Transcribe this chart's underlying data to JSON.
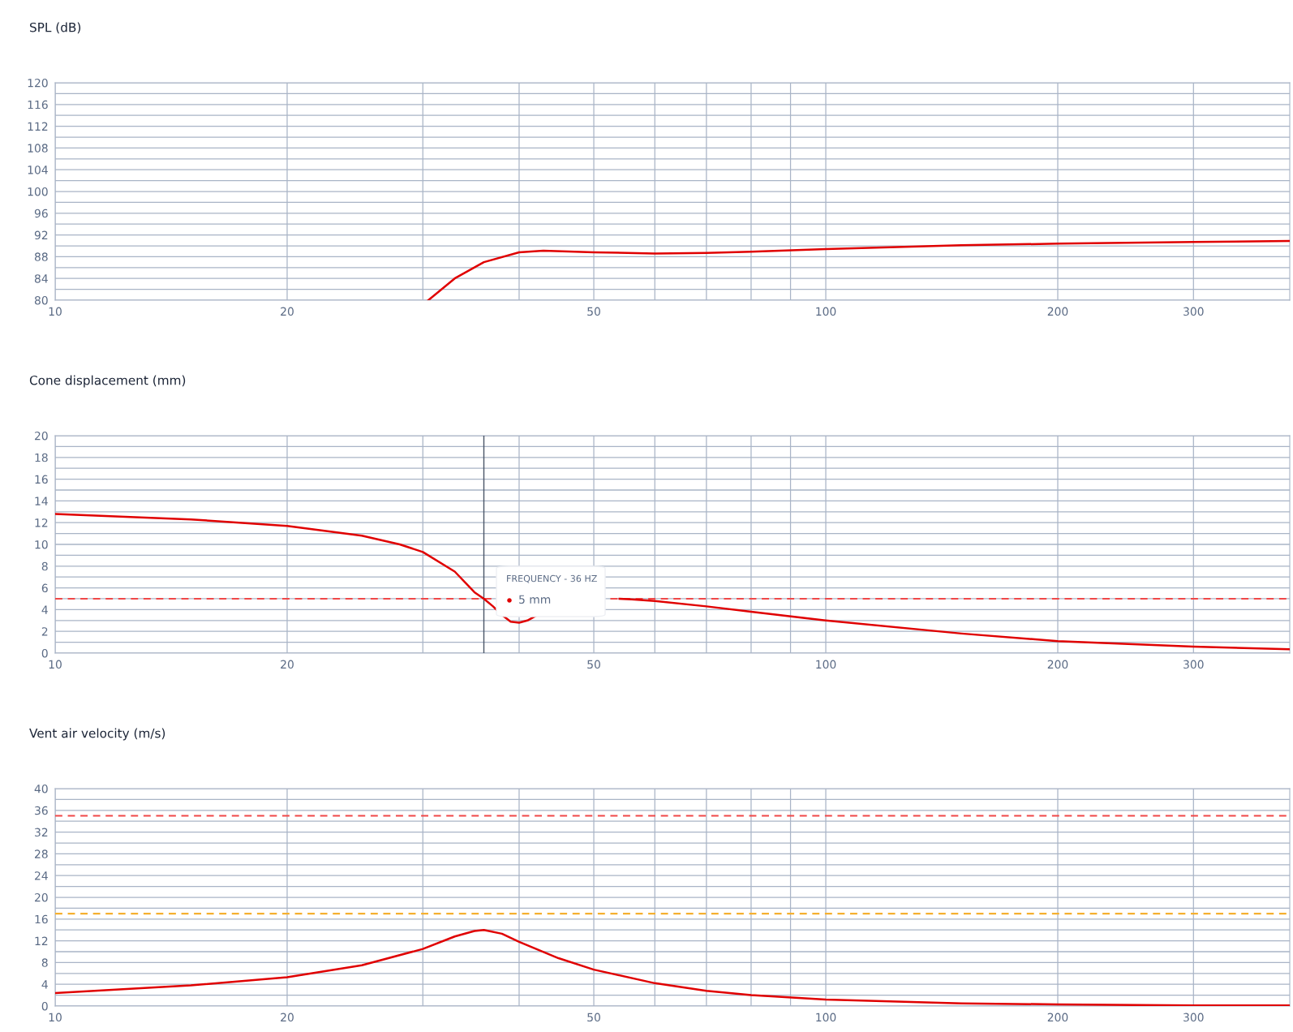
{
  "chart_data": [
    {
      "type": "line",
      "title": "SPL (dB)",
      "log": "x",
      "grid": true,
      "legend": false,
      "marker": "none",
      "line_style": "solid",
      "xlim": [
        10,
        400
      ],
      "xticks": [
        10,
        20,
        {
          "value": 30,
          "label": null
        },
        {
          "value": 40,
          "label": null
        },
        50,
        {
          "value": 60,
          "label": null
        },
        {
          "value": 70,
          "label": null
        },
        {
          "value": 80,
          "label": null
        },
        {
          "value": 90,
          "label": null
        },
        100,
        200,
        300
      ],
      "ylim": [
        80,
        120
      ],
      "yticks": [
        80,
        {
          "value": 82,
          "label": null
        },
        84,
        {
          "value": 86,
          "label": null
        },
        88,
        {
          "value": 90,
          "label": null
        },
        92,
        {
          "value": 94,
          "label": null
        },
        96,
        {
          "value": 98,
          "label": null
        },
        100,
        {
          "value": 102,
          "label": null
        },
        104,
        {
          "value": 106,
          "label": null
        },
        108,
        {
          "value": 110,
          "label": null
        },
        112,
        {
          "value": 114,
          "label": null
        },
        116,
        {
          "value": 118,
          "label": null
        },
        120
      ],
      "series": [
        {
          "color": "#e00000",
          "x": [
            30.5,
            33,
            36,
            40,
            43,
            50,
            60,
            70,
            80,
            100,
            150,
            200,
            300,
            400
          ],
          "values": [
            80,
            84,
            87,
            88.8,
            89.1,
            88.8,
            88.6,
            88.7,
            88.9,
            89.4,
            90.1,
            90.4,
            90.7,
            90.9
          ]
        }
      ]
    },
    {
      "type": "line",
      "title": "Cone displacement (mm)",
      "log": "x",
      "grid": true,
      "legend": false,
      "marker": "none",
      "line_style": "solid",
      "xlim": [
        10,
        400
      ],
      "xticks": [
        10,
        20,
        {
          "value": 30,
          "label": null
        },
        {
          "value": 40,
          "label": null
        },
        50,
        {
          "value": 60,
          "label": null
        },
        {
          "value": 70,
          "label": null
        },
        {
          "value": 80,
          "label": null
        },
        {
          "value": 90,
          "label": null
        },
        100,
        200,
        300
      ],
      "ylim": [
        0,
        20
      ],
      "yticks": [
        0,
        {
          "value": 1,
          "label": null
        },
        2,
        {
          "value": 3,
          "label": null
        },
        4,
        {
          "value": 5,
          "label": null
        },
        6,
        {
          "value": 7,
          "label": null
        },
        8,
        {
          "value": 9,
          "label": null
        },
        10,
        {
          "value": 11,
          "label": null
        },
        12,
        {
          "value": 13,
          "label": null
        },
        14,
        {
          "value": 15,
          "label": null
        },
        16,
        {
          "value": 17,
          "label": null
        },
        18,
        {
          "value": 19,
          "label": null
        },
        20
      ],
      "series": [
        {
          "color": "#e00000",
          "x": [
            10,
            15,
            20,
            25,
            28,
            30,
            33,
            35,
            36,
            37,
            38,
            39,
            40,
            41,
            42,
            46,
            54,
            56,
            60,
            70,
            80,
            100,
            150,
            200,
            300,
            400
          ],
          "values": [
            12.8,
            12.3,
            11.7,
            10.8,
            10,
            9.3,
            7.5,
            5.6,
            5,
            4.3,
            3.5,
            2.9,
            2.8,
            3.0,
            3.4,
            null,
            5.0,
            4.95,
            4.8,
            4.3,
            3.8,
            3.0,
            1.8,
            1.1,
            0.6,
            0.35
          ]
        }
      ],
      "ref_lines": [
        {
          "axis": "y",
          "value": 5,
          "color": "#f04848",
          "line_style": "dashed"
        },
        {
          "axis": "x",
          "value": 36,
          "color": "#4a5566",
          "line_style": "solid"
        }
      ],
      "annotations": [
        "FREQUENCY - 36 HZ",
        "5 mm"
      ]
    },
    {
      "type": "line",
      "title": "Vent air velocity (m/s)",
      "log": "x",
      "grid": true,
      "legend": false,
      "marker": "none",
      "line_style": "solid",
      "xlim": [
        10,
        400
      ],
      "xticks": [
        10,
        20,
        {
          "value": 30,
          "label": null
        },
        {
          "value": 40,
          "label": null
        },
        50,
        {
          "value": 60,
          "label": null
        },
        {
          "value": 70,
          "label": null
        },
        {
          "value": 80,
          "label": null
        },
        {
          "value": 90,
          "label": null
        },
        100,
        200,
        300
      ],
      "ylim": [
        0,
        40
      ],
      "yticks": [
        0,
        {
          "value": 2,
          "label": null
        },
        4,
        {
          "value": 6,
          "label": null
        },
        8,
        {
          "value": 10,
          "label": null
        },
        12,
        {
          "value": 14,
          "label": null
        },
        16,
        {
          "value": 18,
          "label": null
        },
        20,
        {
          "value": 22,
          "label": null
        },
        24,
        {
          "value": 26,
          "label": null
        },
        28,
        {
          "value": 30,
          "label": null
        },
        32,
        {
          "value": 34,
          "label": null
        },
        36,
        {
          "value": 38,
          "label": null
        },
        40
      ],
      "series": [
        {
          "color": "#e00000",
          "x": [
            10,
            15,
            20,
            25,
            30,
            33,
            35,
            36,
            38,
            40,
            45,
            50,
            60,
            70,
            80,
            100,
            150,
            200,
            300,
            400
          ],
          "values": [
            2.4,
            3.8,
            5.3,
            7.5,
            10.5,
            12.8,
            13.8,
            14,
            13.3,
            11.8,
            8.8,
            6.7,
            4.2,
            2.8,
            2.0,
            1.2,
            0.5,
            0.3,
            0.1,
            0.1
          ]
        }
      ],
      "ref_lines": [
        {
          "axis": "y",
          "value": 35,
          "color": "#f04848",
          "line_style": "dashed"
        },
        {
          "axis": "y",
          "value": 17,
          "color": "#f5b030",
          "line_style": "dashed"
        }
      ]
    }
  ]
}
